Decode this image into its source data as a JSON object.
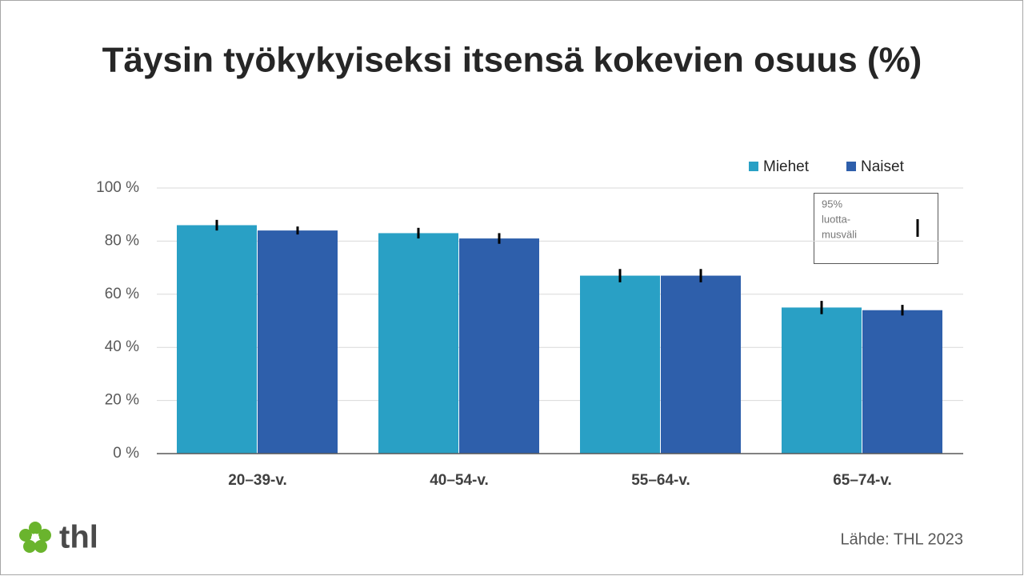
{
  "chart_data": {
    "type": "bar",
    "title": "Täysin työkykyiseksi itsensä kokevien osuus (%)",
    "categories": [
      "20–39-v.",
      "40–54-v.",
      "55–64-v.",
      "65–74-v."
    ],
    "series": [
      {
        "name": "Miehet",
        "color": "#29a0c5",
        "values": [
          86,
          83,
          67,
          55
        ],
        "errors": [
          2,
          2,
          2.5,
          2.5
        ]
      },
      {
        "name": "Naiset",
        "color": "#2e5fab",
        "values": [
          84,
          81,
          67,
          54
        ],
        "errors": [
          1.5,
          2,
          2.5,
          2
        ]
      }
    ],
    "ylim": [
      0,
      100
    ],
    "yticks": [
      {
        "value": 0,
        "label": "0 %"
      },
      {
        "value": 20,
        "label": "20 %"
      },
      {
        "value": 40,
        "label": "40 %"
      },
      {
        "value": 60,
        "label": "60 %"
      },
      {
        "value": 80,
        "label": "80 %"
      },
      {
        "value": 100,
        "label": "100 %"
      }
    ],
    "grid": true,
    "ci_legend": [
      "95%",
      "luotta-",
      "musväli"
    ],
    "source": "Lähde: THL 2023",
    "logo": "thl"
  }
}
